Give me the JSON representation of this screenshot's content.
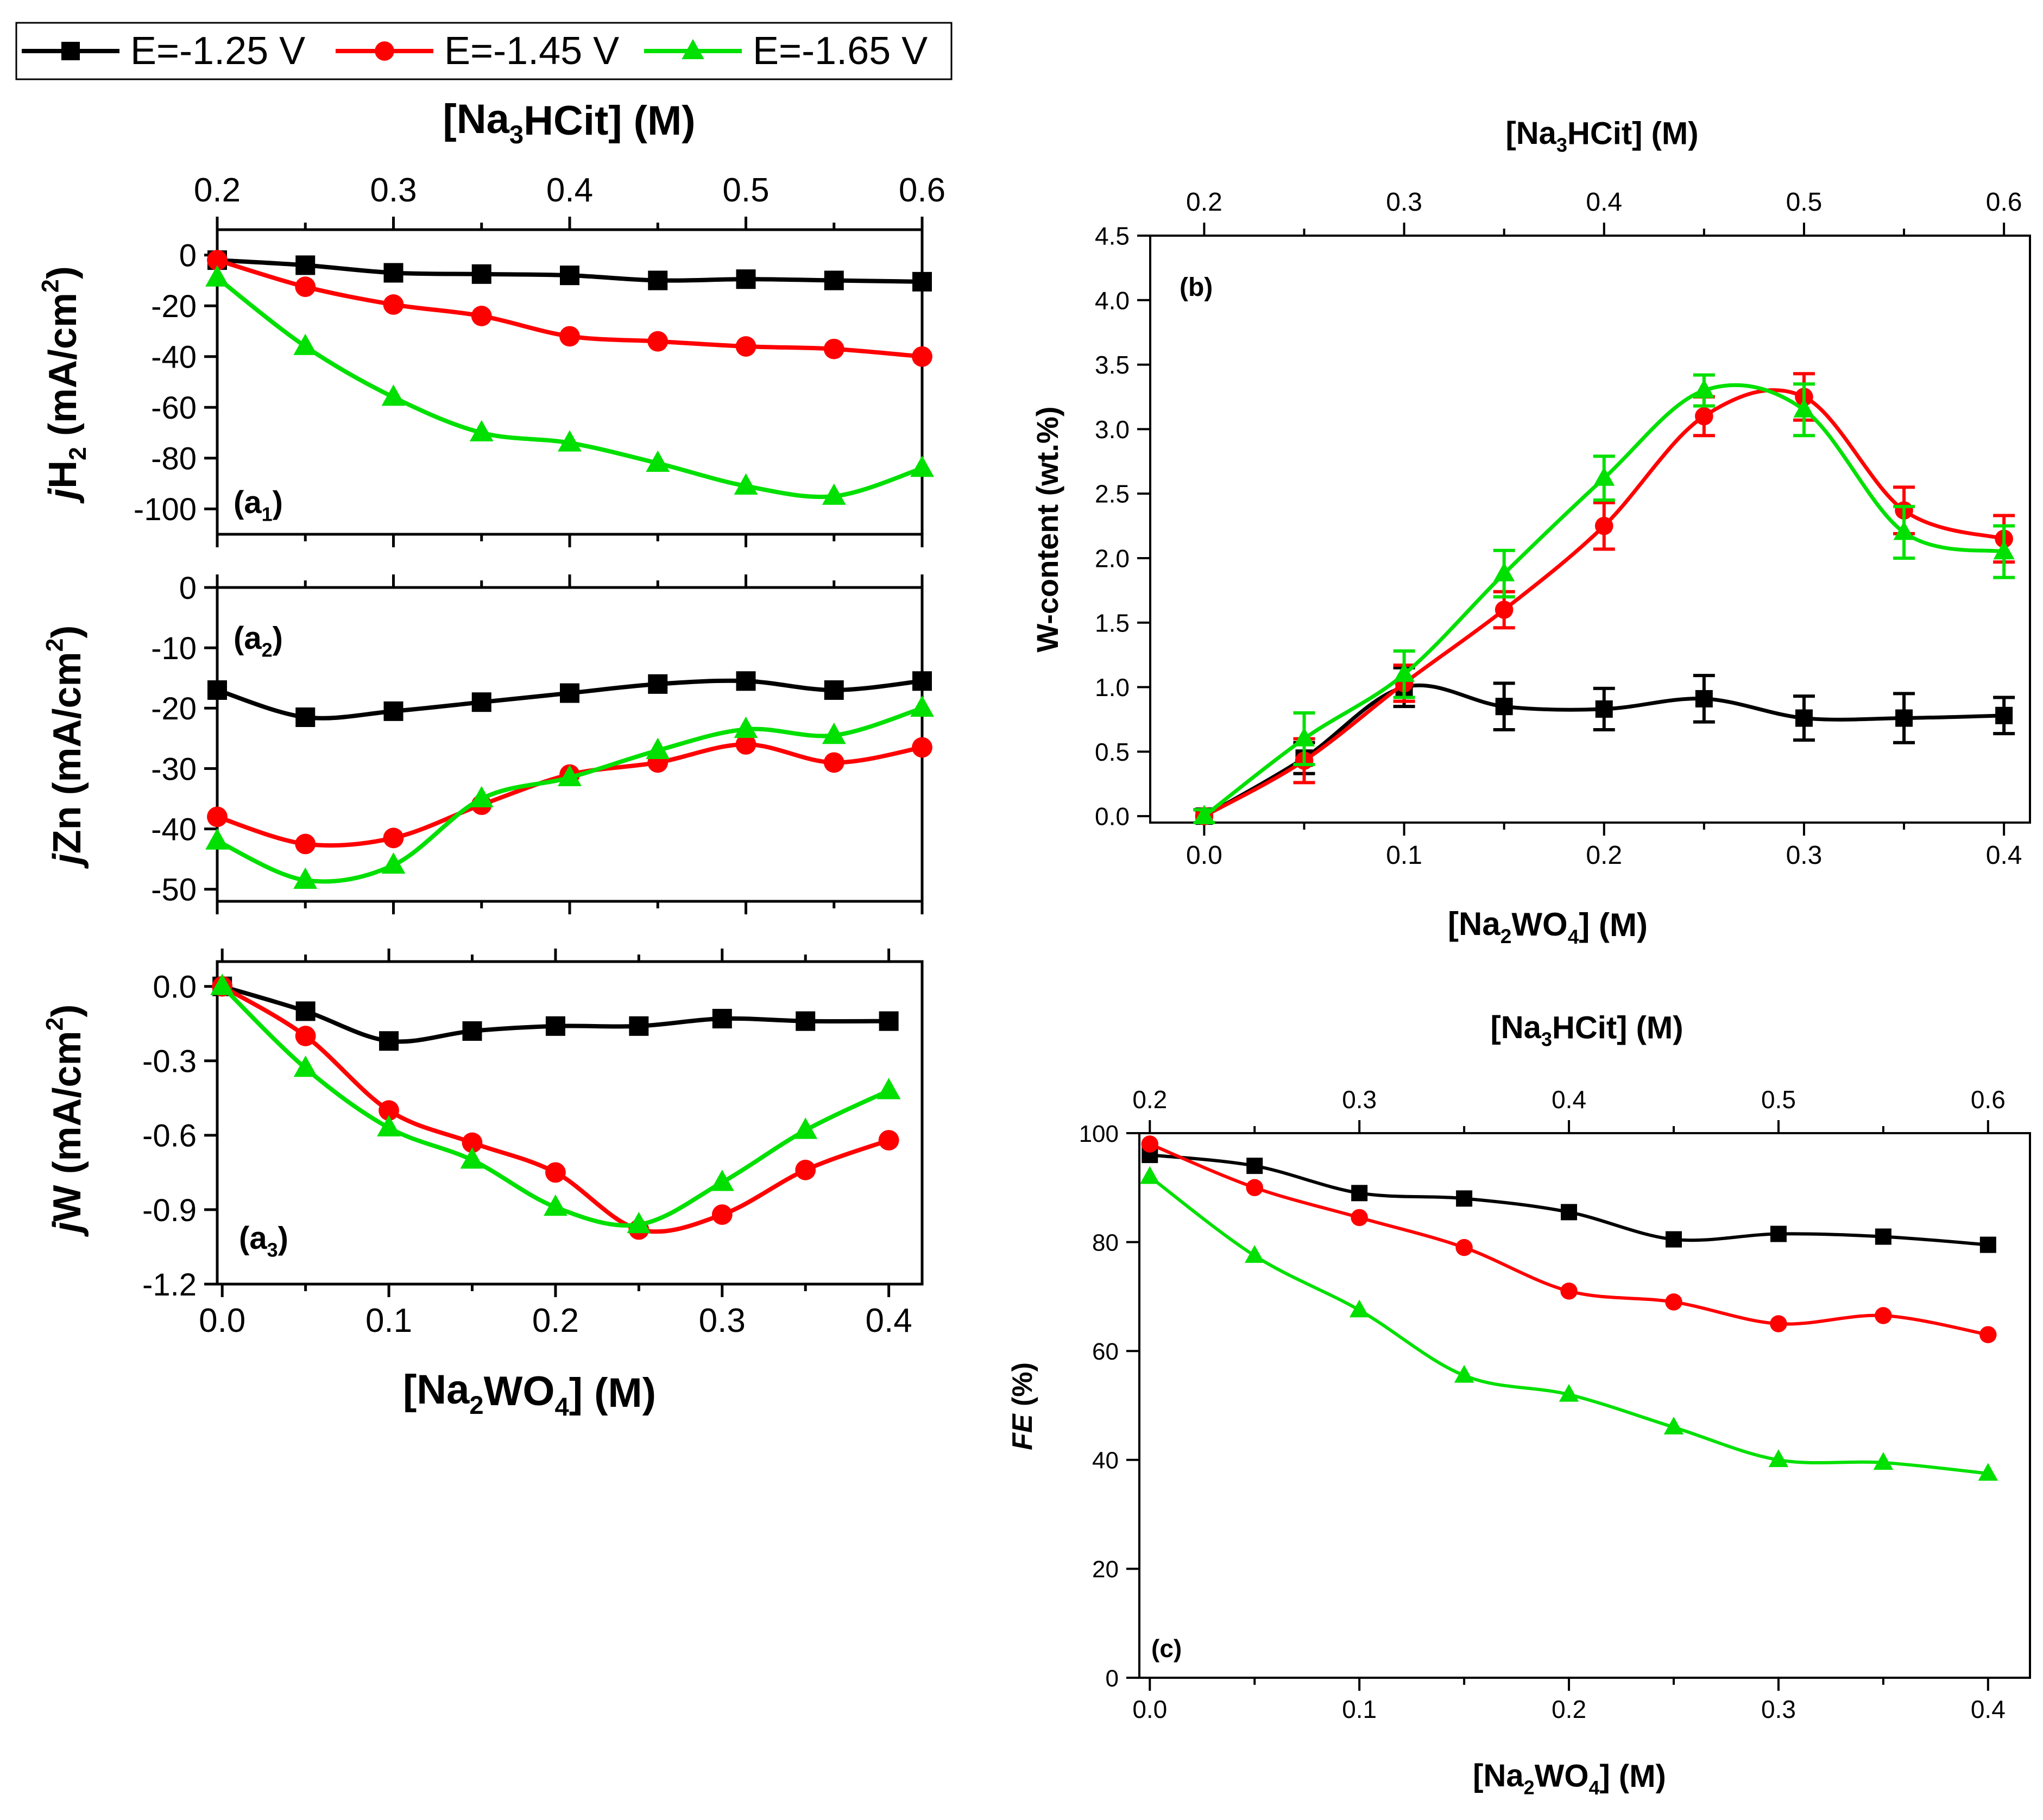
{
  "legend": {
    "items": [
      {
        "label": "E=-1.25 V",
        "color": "#000000",
        "marker": "square"
      },
      {
        "label": "E=-1.45 V",
        "color": "#ff0000",
        "marker": "circle"
      },
      {
        "label": "E=-1.65 V",
        "color": "#00e000",
        "marker": "triangle"
      }
    ]
  },
  "chart_data": [
    {
      "id": "a1",
      "type": "line",
      "panel_label": "(a",
      "panel_sub": "1",
      "panel_label_end": ")",
      "ylabel_pre": "j",
      "ylabel_main": "H",
      "ylabel_sub": "2",
      "ylabel_post": " (mA/cm",
      "ylabel_sup": "2",
      "ylabel_end": ")",
      "top_axis_label": {
        "pre": "[Na",
        "sub": "3",
        "post": "HCit] (M)"
      },
      "top_ticks": [
        "0.2",
        "0.3",
        "0.4",
        "0.5",
        "0.6"
      ],
      "top_range": [
        0.2,
        0.6
      ],
      "x": [
        0,
        0.05,
        0.1,
        0.15,
        0.2,
        0.25,
        0.3,
        0.35,
        0.4
      ],
      "xlim": [
        0,
        0.4
      ],
      "ylim": [
        -110,
        10
      ],
      "yticks": [
        "0",
        "-20",
        "-40",
        "-60",
        "-80",
        "-100"
      ],
      "ytick_values": [
        0,
        -20,
        -40,
        -60,
        -80,
        -100
      ],
      "series": [
        {
          "name": "E=-1.25 V",
          "values": [
            -2,
            -4,
            -7,
            -7.5,
            -8,
            -10,
            -9.5,
            -10,
            -10.5
          ]
        },
        {
          "name": "E=-1.45 V",
          "values": [
            -2,
            -12.5,
            -19.5,
            -24,
            -32,
            -34,
            -36,
            -37,
            -40
          ]
        },
        {
          "name": "E=-1.65 V",
          "values": [
            -9,
            -36,
            -56,
            -70,
            -74,
            -82,
            -91,
            -95,
            -84
          ]
        }
      ]
    },
    {
      "id": "a2",
      "type": "line",
      "panel_label": "(a",
      "panel_sub": "2",
      "panel_label_end": ")",
      "ylabel_pre": "j",
      "ylabel_main": "Zn",
      "ylabel_sub": "",
      "ylabel_post": " (mA/cm",
      "ylabel_sup": "2",
      "ylabel_end": ")",
      "x": [
        0,
        0.05,
        0.1,
        0.15,
        0.2,
        0.25,
        0.3,
        0.35,
        0.4
      ],
      "xlim": [
        0,
        0.4
      ],
      "ylim": [
        -52,
        0
      ],
      "yticks": [
        "0",
        "-10",
        "-20",
        "-30",
        "-40",
        "-50"
      ],
      "ytick_values": [
        0,
        -10,
        -20,
        -30,
        -40,
        -50
      ],
      "series": [
        {
          "name": "E=-1.25 V",
          "values": [
            -17,
            -21.5,
            -20.5,
            -19,
            -17.5,
            -16,
            -15.5,
            -17,
            -15.5
          ]
        },
        {
          "name": "E=-1.45 V",
          "values": [
            -38,
            -42.5,
            -41.5,
            -36,
            -31,
            -29,
            -26,
            -29,
            -26.5
          ]
        },
        {
          "name": "E=-1.65 V",
          "values": [
            -42,
            -48.5,
            -46,
            -35,
            -31.5,
            -27,
            -23.5,
            -24.5,
            -20
          ]
        }
      ]
    },
    {
      "id": "a3",
      "type": "line",
      "panel_label": "(a",
      "panel_sub": "3",
      "panel_label_end": ")",
      "ylabel_pre": "j",
      "ylabel_main": "W",
      "ylabel_sub": "",
      "ylabel_post": " (mA/cm",
      "ylabel_sup": "2",
      "ylabel_end": ")",
      "xlabel": {
        "pre": "[Na",
        "sub1": "2",
        "mid": "WO",
        "sub2": "4",
        "post": "] (M)"
      },
      "xticks": [
        "0.0",
        "0.1",
        "0.2",
        "0.3",
        "0.4"
      ],
      "x": [
        0,
        0.05,
        0.1,
        0.15,
        0.2,
        0.25,
        0.3,
        0.35,
        0.4
      ],
      "xlim": [
        -0.003,
        0.42
      ],
      "ylim": [
        -1.2,
        0.1
      ],
      "yticks": [
        "0.0",
        "-0.3",
        "-0.6",
        "-0.9",
        "-1.2"
      ],
      "ytick_values": [
        0,
        -0.3,
        -0.6,
        -0.9,
        -1.2
      ],
      "series": [
        {
          "name": "E=-1.25 V",
          "values": [
            0,
            -0.1,
            -0.22,
            -0.18,
            -0.16,
            -0.16,
            -0.13,
            -0.14,
            -0.14
          ]
        },
        {
          "name": "E=-1.45 V",
          "values": [
            0,
            -0.2,
            -0.5,
            -0.63,
            -0.75,
            -0.98,
            -0.92,
            -0.74,
            -0.62
          ]
        },
        {
          "name": "E=-1.65 V",
          "values": [
            0,
            -0.33,
            -0.57,
            -0.7,
            -0.89,
            -0.96,
            -0.79,
            -0.58,
            -0.42
          ]
        }
      ]
    },
    {
      "id": "b",
      "type": "line",
      "panel_label": "(b)",
      "ylabel": "W-content (wt.%)",
      "top_axis_label": {
        "pre": "[Na",
        "sub": "3",
        "post": "HCit] (M)"
      },
      "top_ticks": [
        "0.2",
        "0.3",
        "0.4",
        "0.5",
        "0.6"
      ],
      "xlabel": {
        "pre": "[Na",
        "sub1": "2",
        "mid": "WO",
        "sub2": "4",
        "post": "] (M)"
      },
      "xticks": [
        "0.0",
        "0.1",
        "0.2",
        "0.3",
        "0.4"
      ],
      "x": [
        0,
        0.05,
        0.1,
        0.15,
        0.2,
        0.25,
        0.3,
        0.35,
        0.4
      ],
      "xlim": [
        -0.027,
        0.413
      ],
      "ylim": [
        -0.05,
        4.5
      ],
      "yticks": [
        "0.0",
        "0.5",
        "1.0",
        "1.5",
        "2.0",
        "2.5",
        "3.0",
        "3.5",
        "4.0",
        "4.5"
      ],
      "ytick_values": [
        0,
        0.5,
        1,
        1.5,
        2,
        2.5,
        3,
        3.5,
        4,
        4.5
      ],
      "series": [
        {
          "name": "E=-1.25 V",
          "values": [
            0,
            0.45,
            1.0,
            0.85,
            0.83,
            0.91,
            0.76,
            0.76,
            0.78
          ],
          "errors": [
            0.05,
            0.12,
            0.15,
            0.18,
            0.16,
            0.18,
            0.17,
            0.19,
            0.14
          ]
        },
        {
          "name": "E=-1.45 V",
          "values": [
            0,
            0.43,
            1.03,
            1.6,
            2.25,
            3.1,
            3.25,
            2.37,
            2.15
          ],
          "errors": [
            0.05,
            0.17,
            0.14,
            0.14,
            0.18,
            0.15,
            0.18,
            0.18,
            0.18
          ]
        },
        {
          "name": "E=-1.65 V",
          "values": [
            0,
            0.6,
            1.1,
            1.88,
            2.62,
            3.3,
            3.15,
            2.2,
            2.05
          ],
          "errors": [
            0.05,
            0.2,
            0.18,
            0.18,
            0.17,
            0.12,
            0.2,
            0.2,
            0.2
          ]
        }
      ]
    },
    {
      "id": "c",
      "type": "line",
      "panel_label": "(c)",
      "ylabel": "FE (%)",
      "top_axis_label": {
        "pre": "[Na",
        "sub": "3",
        "post": "HCit] (M)"
      },
      "top_ticks": [
        "0.2",
        "0.3",
        "0.4",
        "0.5",
        "0.6"
      ],
      "xlabel": {
        "pre": "[Na",
        "sub1": "2",
        "mid": "WO",
        "sub2": "4",
        "post": "] (M)"
      },
      "xticks": [
        "0.0",
        "0.1",
        "0.2",
        "0.3",
        "0.4"
      ],
      "x": [
        0,
        0.05,
        0.1,
        0.15,
        0.2,
        0.25,
        0.3,
        0.35,
        0.4
      ],
      "xlim": [
        -0.005,
        0.42
      ],
      "ylim": [
        0,
        100
      ],
      "yticks": [
        "0",
        "20",
        "40",
        "60",
        "80",
        "100"
      ],
      "ytick_values": [
        0,
        20,
        40,
        60,
        80,
        100
      ],
      "series": [
        {
          "name": "E=-1.25 V",
          "values": [
            96,
            94,
            89,
            88,
            85.5,
            80.5,
            81.5,
            81,
            79.5
          ]
        },
        {
          "name": "E=-1.45 V",
          "values": [
            98,
            90,
            84.5,
            79,
            71,
            69,
            65,
            66.5,
            63
          ]
        },
        {
          "name": "E=-1.65 V",
          "values": [
            92,
            77.5,
            67.5,
            55.5,
            52,
            46,
            40,
            39.5,
            37.5
          ]
        }
      ]
    }
  ]
}
